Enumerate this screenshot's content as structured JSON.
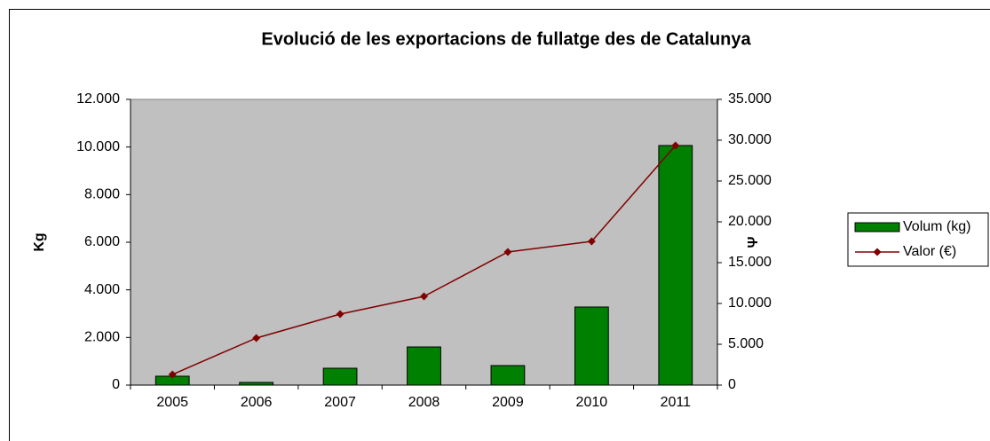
{
  "chart_data": {
    "type": "bar",
    "title": "Evolució de les exportacions de fullatge des de Catalunya",
    "y_label": "Kg",
    "y2_label": "Ψ",
    "categories": [
      "2005",
      "2006",
      "2007",
      "2008",
      "2009",
      "2010",
      "2011"
    ],
    "series": [
      {
        "name": "Volum (kg)",
        "type": "bar",
        "color": "#008000",
        "values": [
          373,
          112,
          708,
          1602,
          820,
          3280,
          10062
        ]
      },
      {
        "name": "Valor (€)",
        "type": "line",
        "axis": "y2",
        "color": "#800000",
        "values": [
          1304,
          5761,
          8696,
          10870,
          16304,
          17609,
          29348
        ]
      }
    ],
    "ylim": [
      0,
      12000
    ],
    "yticks": [
      0,
      {
        "value": 2000,
        "label": "2.000"
      },
      {
        "value": 4000,
        "label": "4.000"
      },
      {
        "value": 6000,
        "label": "6.000"
      },
      {
        "value": 8000,
        "label": "8.000"
      },
      {
        "value": 10000,
        "label": "10.000"
      },
      {
        "value": 12000,
        "label": "12.000"
      }
    ],
    "y2lim": [
      0,
      35000
    ],
    "y2ticks": [
      0,
      {
        "value": 5000,
        "label": "5.000"
      },
      {
        "value": 10000,
        "label": "10.000"
      },
      {
        "value": 15000,
        "label": "15.000"
      },
      {
        "value": 20000,
        "label": "20.000"
      },
      {
        "value": 25000,
        "label": "25.000"
      },
      {
        "value": 30000,
        "label": "30.000"
      },
      {
        "value": 35000,
        "label": "35.000"
      }
    ],
    "plot_background": "#c0c0c0",
    "legend": "right"
  }
}
